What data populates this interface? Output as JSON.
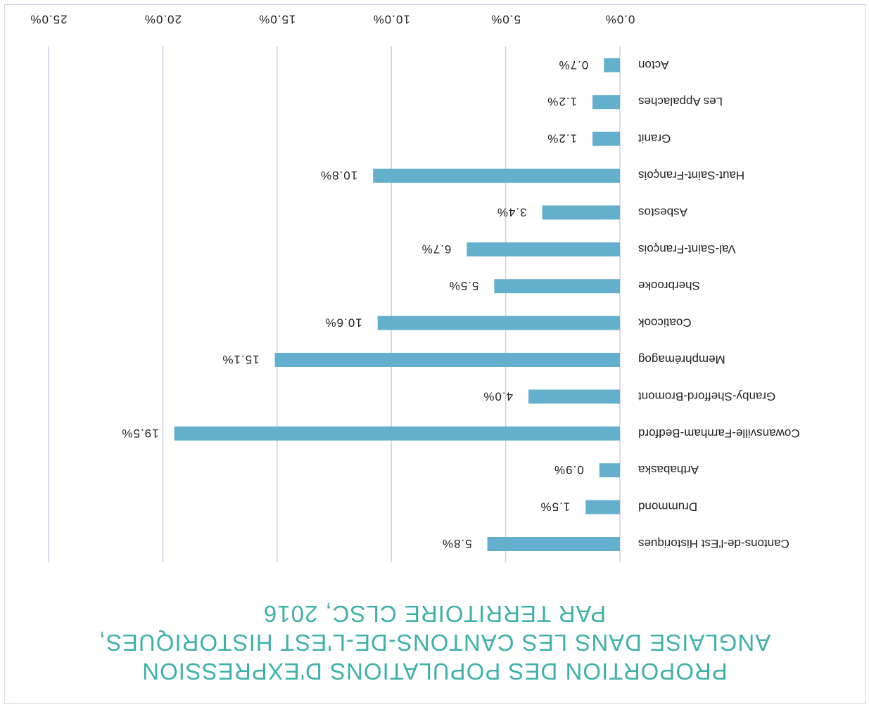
{
  "title_lines": [
    "PROPORTION DES POPULATIONS D'EXPRESSION",
    "ANGLAISE DANS LES CANTONS-DE-L'EST HISTORIQUES,",
    "PAR TERRITOIRE CLSC, 2016"
  ],
  "chart_data": {
    "type": "bar",
    "orientation": "horizontal",
    "categories": [
      "Cantons-de-l'Est Historiques",
      "Drummond",
      "Arthabaska",
      "Cowansville-Farnham-Bedford",
      "Granby-Shefford-Bromont",
      "Memphrémagog",
      "Coaticook",
      "Sherbrooke",
      "Val-Saint-François",
      "Asbestos",
      "Haut-Saint-François",
      "Granit",
      "Les Appalaches",
      "Acton"
    ],
    "values": [
      5.8,
      1.5,
      0.9,
      19.5,
      4.0,
      15.1,
      10.6,
      5.5,
      6.7,
      3.4,
      10.8,
      1.2,
      1.2,
      0.7
    ],
    "value_labels": [
      "5.8%",
      "1.5%",
      "0.9%",
      "19.5%",
      "4.0%",
      "15.1%",
      "10.6%",
      "5.5%",
      "6.7%",
      "3.4%",
      "10.8%",
      "1.2%",
      "1.2%",
      "0.7%"
    ],
    "xlim": [
      0,
      25
    ],
    "x_ticks": [
      0,
      5,
      10,
      15,
      20,
      25
    ],
    "x_tick_labels": [
      "0.0%",
      "5.0%",
      "10.0%",
      "15.0%",
      "20.0%",
      "25.0%"
    ],
    "grid": true,
    "bar_color": "#64b0cc",
    "grid_color": "#cdcfe8",
    "title_color": "#3fb1a9",
    "orientation_note": "image is rotated 180 degrees"
  }
}
